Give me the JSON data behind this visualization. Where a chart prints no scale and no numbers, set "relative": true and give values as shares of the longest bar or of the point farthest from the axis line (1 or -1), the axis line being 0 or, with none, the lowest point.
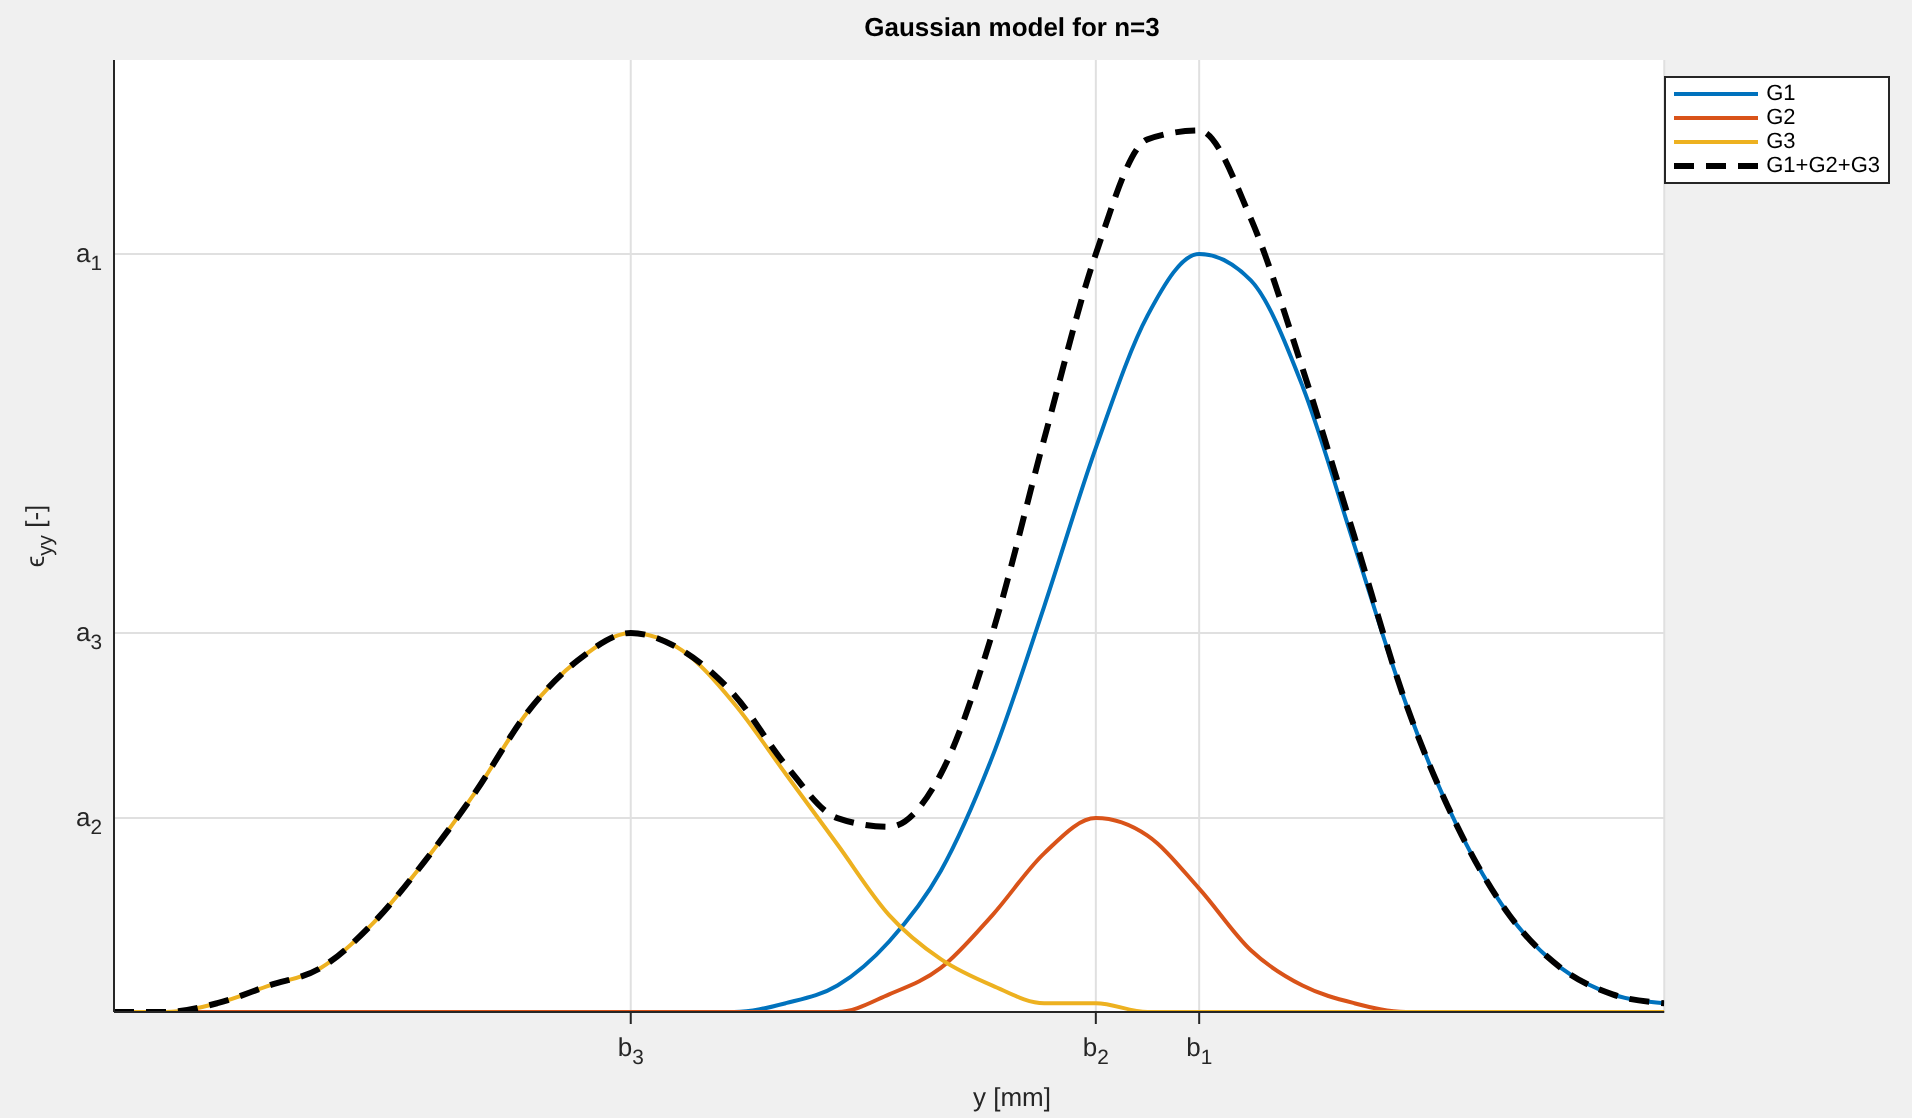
{
  "chart_data": {
    "type": "line",
    "title": "Gaussian model for n=3",
    "xlabel": "y [mm]",
    "ylabel": "ϵ$_{yy}$ [-]",
    "relative": true,
    "categories": [
      null,
      null,
      null,
      null,
      null,
      null,
      null,
      null,
      null,
      null,
      "b$_{3}$",
      null,
      null,
      null,
      null,
      null,
      null,
      null,
      null,
      "b$_{2}$",
      null,
      "b$_{1}$",
      null,
      null,
      null,
      null,
      null,
      null,
      null,
      null,
      null
    ],
    "ref_lines": [
      {
        "axis": "y",
        "value": 0.22,
        "label": "a$_{2}$",
        "color": "#e0e0e0"
      },
      {
        "axis": "y",
        "value": 0.43,
        "label": "a$_{3}$",
        "color": "#e0e0e0"
      },
      {
        "axis": "y",
        "value": 0.86,
        "label": "a$_{1}$",
        "color": "#e0e0e0"
      }
    ],
    "grid": "x",
    "legend": "top right",
    "marker": "none",
    "series": [
      {
        "name": "G1",
        "color": "#0072bd",
        "values": [
          null,
          null,
          null,
          null,
          null,
          null,
          null,
          null,
          null,
          null,
          null,
          0,
          0,
          0.01,
          0.03,
          0.08,
          0.16,
          0.29,
          0.46,
          0.64,
          0.79,
          0.86,
          0.83,
          0.71,
          0.53,
          0.35,
          0.21,
          0.11,
          0.05,
          0.02,
          0.01
        ]
      },
      {
        "name": "G2",
        "color": "#d95319",
        "values": [
          0,
          0,
          0,
          0,
          0,
          0,
          0,
          0,
          0,
          0,
          0,
          0,
          0,
          0,
          0,
          0.02,
          0.05,
          0.11,
          0.18,
          0.22,
          0.2,
          0.14,
          0.07,
          0.03,
          0.01,
          0,
          0,
          null,
          null,
          null,
          null
        ]
      },
      {
        "name": "G3",
        "color": "#edb120",
        "values": [
          0,
          0,
          0.01,
          0.03,
          0.05,
          0.1,
          0.17,
          0.25,
          0.34,
          0.4,
          0.43,
          0.41,
          0.35,
          0.27,
          0.19,
          0.11,
          0.06,
          0.03,
          0.01,
          0.01,
          0,
          0,
          0,
          0,
          0,
          0,
          0,
          0,
          0,
          0,
          0
        ]
      },
      {
        "name": "G1+G2+G3",
        "color": "#000000",
        "line_style": "dashed",
        "values": [
          0,
          0,
          0.01,
          0.03,
          0.05,
          0.1,
          0.17,
          0.25,
          0.34,
          0.4,
          0.43,
          0.41,
          0.36,
          0.28,
          0.22,
          0.21,
          0.27,
          0.43,
          0.65,
          0.86,
          0.99,
          1,
          0.9,
          0.73,
          0.54,
          0.35,
          0.21,
          0.11,
          0.05,
          0.02,
          0.01
        ]
      }
    ]
  }
}
